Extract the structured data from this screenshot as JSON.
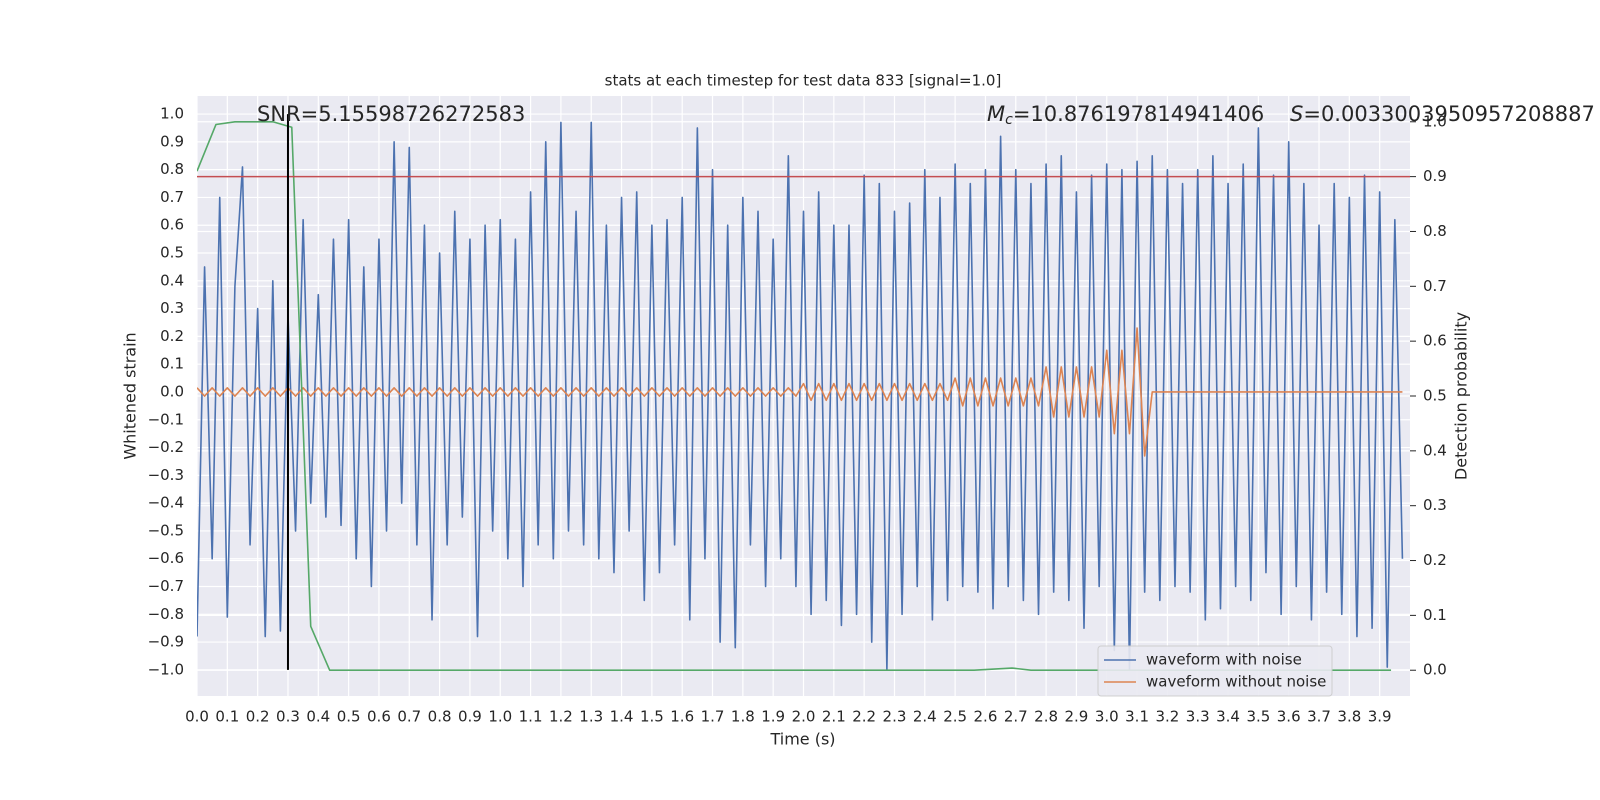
{
  "chart_data": {
    "type": "line",
    "title": "stats at each timestep for test data 833 [signal=1.0]",
    "xlabel": "Time (s)",
    "ylabel": "Whitened strain",
    "y2label": "Detection probability",
    "annotations": {
      "snr": "SNR=5.15598726272583",
      "mc": {
        "symbol": "M",
        "subscript": "c",
        "text": "=10.876197814941406"
      },
      "s": {
        "symbol": "S",
        "text": "=0.0033003950957208887"
      }
    },
    "grid": true,
    "legend": "lower right",
    "xlim": [
      0,
      4.0
    ],
    "ylim": [
      -1.094,
      1.065
    ],
    "y2lim": [
      -0.047,
      1.047
    ],
    "xticks": [
      {
        "value": 0,
        "label": "0.0"
      },
      0.1,
      0.2,
      0.3,
      0.4,
      0.5,
      0.6,
      0.7,
      0.8,
      0.9,
      {
        "value": 1,
        "label": "1.0"
      },
      1.1,
      1.2,
      1.3,
      1.4,
      1.5,
      1.6,
      1.7,
      1.8,
      1.9,
      {
        "value": 2,
        "label": "2.0"
      },
      2.1,
      2.2,
      2.3,
      2.4,
      2.5,
      2.6,
      2.7,
      2.8,
      2.9,
      {
        "value": 3,
        "label": "3.0"
      },
      3.1,
      3.2,
      3.3,
      3.4,
      3.5,
      3.6,
      3.7,
      3.8,
      3.9
    ],
    "yticks": [
      {
        "value": 1,
        "label": "1.0"
      },
      0.9,
      0.8,
      0.7,
      0.6,
      0.5,
      0.4,
      0.3,
      0.2,
      0.1,
      {
        "value": 0,
        "label": "0.0"
      },
      {
        "value": -0.1,
        "label": "−0.1"
      },
      {
        "value": -0.2,
        "label": "−0.2"
      },
      {
        "value": -0.3,
        "label": "−0.3"
      },
      {
        "value": -0.4,
        "label": "−0.4"
      },
      {
        "value": -0.5,
        "label": "−0.5"
      },
      {
        "value": -0.6,
        "label": "−0.6"
      },
      {
        "value": -0.7,
        "label": "−0.7"
      },
      {
        "value": -0.8,
        "label": "−0.8"
      },
      {
        "value": -0.9,
        "label": "−0.9"
      },
      {
        "value": -1,
        "label": "−1.0"
      }
    ],
    "y2ticks": [
      {
        "value": 1,
        "label": "1.0"
      },
      0.9,
      0.8,
      0.7,
      0.6,
      0.5,
      0.4,
      0.3,
      0.2,
      0.1,
      {
        "value": 0,
        "label": "0.0"
      }
    ],
    "x": [
      0,
      0.025,
      0.05,
      0.075,
      0.1,
      0.125,
      0.15,
      0.175,
      0.2,
      0.225,
      0.25,
      0.275,
      0.3,
      0.325,
      0.35,
      0.375,
      0.4,
      0.425,
      0.45,
      0.475,
      0.5,
      0.525,
      0.55,
      0.575,
      0.6,
      0.625,
      0.65,
      0.675,
      0.7,
      0.725,
      0.75,
      0.775,
      0.8,
      0.825,
      0.85,
      0.875,
      0.9,
      0.925,
      0.95,
      0.975,
      1,
      1.025,
      1.05,
      1.075,
      1.1,
      1.125,
      1.15,
      1.175,
      1.2,
      1.225,
      1.25,
      1.275,
      1.3,
      1.325,
      1.35,
      1.375,
      1.4,
      1.425,
      1.45,
      1.475,
      1.5,
      1.525,
      1.55,
      1.575,
      1.6,
      1.625,
      1.65,
      1.675,
      1.7,
      1.725,
      1.75,
      1.775,
      1.8,
      1.825,
      1.85,
      1.875,
      1.9,
      1.925,
      1.95,
      1.975,
      2,
      2.025,
      2.05,
      2.075,
      2.1,
      2.125,
      2.15,
      2.175,
      2.2,
      2.225,
      2.25,
      2.275,
      2.3,
      2.325,
      2.35,
      2.375,
      2.4,
      2.425,
      2.45,
      2.475,
      2.5,
      2.525,
      2.55,
      2.575,
      2.6,
      2.625,
      2.65,
      2.675,
      2.7,
      2.725,
      2.75,
      2.775,
      2.8,
      2.825,
      2.85,
      2.875,
      2.9,
      2.925,
      2.95,
      2.975,
      3,
      3.025,
      3.05,
      3.075,
      3.1,
      3.125,
      3.15,
      3.175,
      3.2,
      3.225,
      3.25,
      3.275,
      3.3,
      3.325,
      3.35,
      3.375,
      3.4,
      3.425,
      3.45,
      3.475,
      3.5,
      3.525,
      3.55,
      3.575,
      3.6,
      3.625,
      3.65,
      3.675,
      3.7,
      3.725,
      3.75,
      3.775,
      3.8,
      3.825,
      3.85,
      3.875,
      3.9,
      3.925,
      3.95,
      3.975
    ],
    "series": [
      {
        "name": "waveform with noise",
        "color": "#4c72b0",
        "values": [
          -0.88,
          0.45,
          -0.6,
          0.7,
          -0.81,
          0.38,
          0.81,
          -0.55,
          0.3,
          -0.88,
          0.4,
          -0.86,
          0.28,
          -0.5,
          0.62,
          -0.4,
          0.35,
          -0.45,
          0.55,
          -0.48,
          0.62,
          -0.6,
          0.45,
          -0.7,
          0.55,
          -0.5,
          0.9,
          -0.4,
          0.88,
          -0.55,
          0.6,
          -0.82,
          0.5,
          -0.55,
          0.65,
          -0.45,
          0.55,
          -0.88,
          0.6,
          -0.5,
          0.62,
          -0.6,
          0.55,
          -0.7,
          0.72,
          -0.55,
          0.9,
          -0.6,
          0.97,
          -0.5,
          0.65,
          -0.55,
          0.97,
          -0.6,
          0.6,
          -0.65,
          0.7,
          -0.5,
          0.72,
          -0.75,
          0.6,
          -0.65,
          0.62,
          -0.55,
          0.7,
          -0.82,
          0.95,
          -0.6,
          0.8,
          -0.9,
          0.6,
          -0.92,
          0.7,
          -0.55,
          0.65,
          -0.7,
          0.55,
          -0.6,
          0.85,
          -0.7,
          0.65,
          -0.8,
          0.72,
          -0.75,
          0.6,
          -0.84,
          0.6,
          -0.8,
          0.78,
          -0.9,
          0.75,
          -1.0,
          0.65,
          -0.8,
          0.68,
          -0.7,
          0.8,
          -0.82,
          0.7,
          -0.75,
          0.82,
          -0.7,
          0.75,
          -0.72,
          0.8,
          -0.78,
          0.92,
          -0.7,
          0.8,
          -0.75,
          0.75,
          -0.8,
          0.82,
          -0.72,
          0.85,
          -0.75,
          0.72,
          -0.85,
          0.78,
          -0.7,
          0.82,
          -0.93,
          0.8,
          -1.0,
          0.83,
          -0.72,
          0.85,
          -0.75,
          0.8,
          -0.7,
          0.75,
          -0.72,
          0.8,
          -0.82,
          0.85,
          -0.78,
          0.75,
          -0.7,
          0.82,
          -0.75,
          0.95,
          -0.65,
          0.78,
          -0.8,
          0.9,
          -0.7,
          0.75,
          -0.82,
          0.6,
          -0.72,
          0.75,
          -0.8,
          0.7,
          -0.88,
          0.78,
          -0.85,
          0.72,
          -0.99,
          0.62,
          -0.6
        ]
      },
      {
        "name": "waveform without noise",
        "color": "#dd8452",
        "values": [
          0.015,
          -0.015,
          0.015,
          -0.015,
          0.015,
          -0.015,
          0.015,
          -0.015,
          0.015,
          -0.015,
          0.015,
          -0.015,
          0.015,
          -0.015,
          0.015,
          -0.015,
          0.015,
          -0.015,
          0.015,
          -0.015,
          0.015,
          -0.015,
          0.015,
          -0.015,
          0.015,
          -0.015,
          0.015,
          -0.015,
          0.015,
          -0.015,
          0.015,
          -0.015,
          0.015,
          -0.015,
          0.015,
          -0.015,
          0.015,
          -0.015,
          0.015,
          -0.015,
          0.015,
          -0.015,
          0.015,
          -0.015,
          0.015,
          -0.015,
          0.015,
          -0.015,
          0.015,
          -0.015,
          0.015,
          -0.015,
          0.015,
          -0.015,
          0.015,
          -0.015,
          0.015,
          -0.015,
          0.015,
          -0.015,
          0.015,
          -0.015,
          0.015,
          -0.015,
          0.015,
          -0.015,
          0.015,
          -0.015,
          0.015,
          -0.015,
          0.015,
          -0.015,
          0.015,
          -0.015,
          0.015,
          -0.015,
          0.015,
          -0.015,
          0.015,
          -0.015,
          0.03,
          -0.03,
          0.03,
          -0.03,
          0.03,
          -0.03,
          0.03,
          -0.03,
          0.03,
          -0.03,
          0.03,
          -0.03,
          0.03,
          -0.03,
          0.03,
          -0.03,
          0.03,
          -0.03,
          0.03,
          -0.03,
          0.05,
          -0.05,
          0.05,
          -0.05,
          0.05,
          -0.05,
          0.05,
          -0.05,
          0.05,
          -0.05,
          0.05,
          -0.05,
          0.09,
          -0.09,
          0.09,
          -0.09,
          0.09,
          -0.09,
          0.09,
          -0.09,
          0.15,
          -0.15,
          0.15,
          -0.15,
          0.23,
          -0.23,
          0,
          0,
          0,
          0,
          0,
          0,
          0,
          0,
          0,
          0,
          0,
          0,
          0,
          0,
          0,
          0,
          0,
          0,
          0,
          0,
          0,
          0,
          0,
          0,
          0,
          0,
          0,
          0,
          0,
          0,
          0,
          0,
          0,
          0
        ]
      },
      {
        "color": "#55a868",
        "axis": "y2",
        "x": [
          0,
          0.0625,
          0.125,
          0.25,
          0.3125,
          0.375,
          0.4375,
          2.5625,
          2.6875,
          2.75,
          3.9375
        ],
        "values": [
          0.91,
          0.995,
          1.0,
          1.0,
          0.99,
          0.08,
          0.0,
          0.0,
          0.004,
          0.0,
          0.0
        ]
      }
    ],
    "threshold": {
      "y2": 0.9,
      "color": "#c44e52"
    },
    "vline": {
      "x": 0.3,
      "ymin": -1,
      "ymax": 1,
      "color": "#000000"
    }
  }
}
